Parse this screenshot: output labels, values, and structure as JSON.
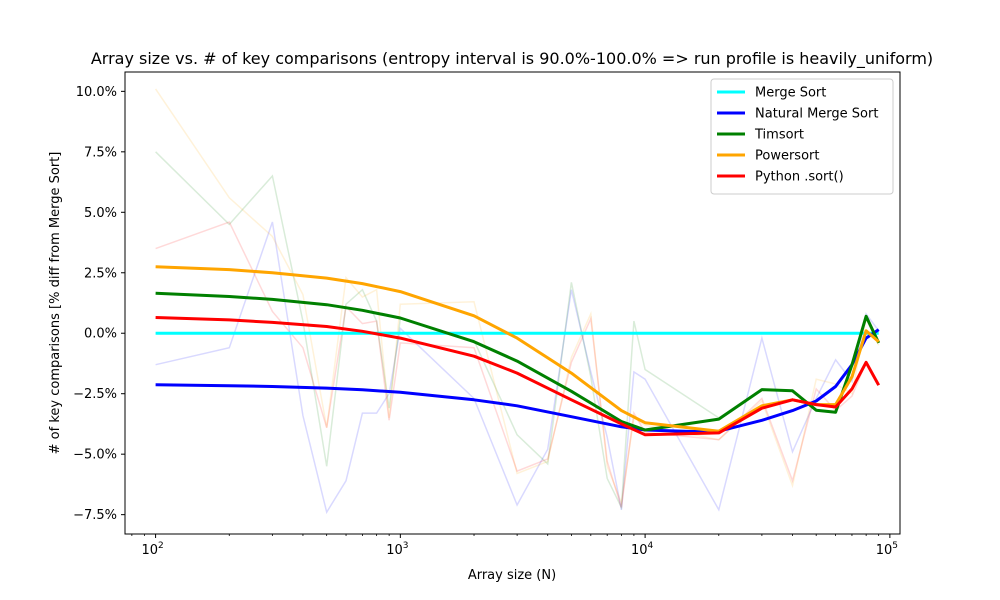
{
  "chart_data": {
    "type": "line",
    "title": "Array size vs. # of key comparisons (entropy interval is 90.0%-100.0% => run profile is heavily_uniform)",
    "xlabel": "Array size (N)",
    "ylabel": "# of key comparisons [% diff from Merge Sort]",
    "xscale": "log",
    "xlim": [
      75,
      110000
    ],
    "ylim": [
      -8.3,
      10.8
    ],
    "x_ticks": [
      {
        "value": 100,
        "base": "10",
        "exp": "2"
      },
      {
        "value": 1000,
        "base": "10",
        "exp": "3"
      },
      {
        "value": 10000,
        "base": "10",
        "exp": "4"
      },
      {
        "value": 100000,
        "base": "10",
        "exp": "5"
      }
    ],
    "y_ticks": [
      {
        "value": 10,
        "label": "10.0%"
      },
      {
        "value": 7.5,
        "label": "7.5%"
      },
      {
        "value": 5,
        "label": "5.0%"
      },
      {
        "value": 2.5,
        "label": "2.5%"
      },
      {
        "value": 0,
        "label": "0.0%"
      },
      {
        "value": -2.5,
        "label": "−2.5%"
      },
      {
        "value": -5,
        "label": "−5.0%"
      },
      {
        "value": -7.5,
        "label": "−7.5%"
      }
    ],
    "grid": false,
    "legend_position": "top-right",
    "series": [
      {
        "name": "Merge Sort",
        "color": "#00ffff",
        "raw_x": [
          100,
          90000
        ],
        "raw_y": [
          0,
          0
        ],
        "smooth_x": [
          100,
          200,
          500,
          1000,
          2000,
          5000,
          10000,
          20000,
          50000,
          90000
        ],
        "smooth_y": [
          0,
          0,
          0,
          0,
          0,
          0,
          0,
          0,
          0,
          0
        ]
      },
      {
        "name": "Natural Merge Sort",
        "color": "#0000ff",
        "raw_x": [
          100,
          200,
          300,
          400,
          500,
          600,
          700,
          800,
          900,
          1000,
          2000,
          3000,
          4000,
          5000,
          6000,
          7000,
          8000,
          9000,
          10000,
          20000,
          30000,
          40000,
          50000,
          60000,
          70000,
          80000,
          90000
        ],
        "raw_y": [
          -1.3,
          -0.6,
          4.6,
          -3.4,
          -7.4,
          -6.1,
          -3.3,
          -3.3,
          -2.5,
          0.2,
          -2.7,
          -7.1,
          -4.8,
          1.8,
          -1.6,
          -4.3,
          -7.3,
          -1.6,
          -1.9,
          -7.3,
          -0.2,
          -4.9,
          -2.7,
          -1.1,
          -2.0,
          0.8,
          0.1
        ],
        "smooth_x": [
          100,
          200,
          300,
          500,
          700,
          1000,
          2000,
          3000,
          5000,
          8000,
          10000,
          15000,
          20000,
          30000,
          40000,
          50000,
          60000,
          70000,
          80000,
          90000
        ],
        "smooth_y": [
          -2.13,
          -2.17,
          -2.2,
          -2.27,
          -2.34,
          -2.44,
          -2.75,
          -3.0,
          -3.45,
          -3.87,
          -4.0,
          -4.06,
          -4.05,
          -3.6,
          -3.2,
          -2.8,
          -2.2,
          -1.3,
          -0.2,
          0.15
        ]
      },
      {
        "name": "Timsort",
        "color": "#008000",
        "raw_x": [
          100,
          200,
          300,
          400,
          500,
          600,
          700,
          800,
          900,
          1000,
          2000,
          3000,
          4000,
          5000,
          6000,
          7000,
          8000,
          9000,
          10000,
          20000,
          30000,
          40000,
          50000,
          60000,
          70000,
          80000,
          90000
        ],
        "raw_y": [
          7.5,
          4.5,
          6.5,
          0.5,
          -5.5,
          1.2,
          1.8,
          0.5,
          -3.1,
          0.6,
          -0.3,
          -4.2,
          -5.4,
          2.1,
          -1.8,
          -6.0,
          -7.2,
          0.5,
          -1.5,
          -3.5,
          -2.3,
          -2.4,
          -3.2,
          -3.3,
          -1.3,
          0.7,
          -0.4
        ],
        "smooth_x": [
          100,
          200,
          300,
          500,
          700,
          1000,
          2000,
          3000,
          5000,
          8000,
          10000,
          20000,
          30000,
          40000,
          50000,
          60000,
          70000,
          80000,
          90000
        ],
        "smooth_y": [
          1.65,
          1.52,
          1.4,
          1.18,
          0.95,
          0.63,
          -0.35,
          -1.15,
          -2.4,
          -3.65,
          -4.0,
          -3.55,
          -2.33,
          -2.38,
          -3.18,
          -3.27,
          -1.3,
          0.7,
          -0.4
        ]
      },
      {
        "name": "Powersort",
        "color": "#ffa500",
        "raw_x": [
          100,
          200,
          300,
          400,
          500,
          600,
          700,
          800,
          900,
          1000,
          2000,
          3000,
          4000,
          5000,
          6000,
          7000,
          8000,
          9000,
          10000,
          20000,
          30000,
          40000,
          50000,
          60000,
          70000,
          80000,
          90000
        ],
        "raw_y": [
          10.1,
          5.6,
          4.0,
          1.6,
          -3.9,
          2.3,
          1.5,
          1.8,
          -3.5,
          1.2,
          1.3,
          -5.8,
          -5.3,
          -1.0,
          0.8,
          -5.5,
          -7.0,
          -3.5,
          -3.8,
          -4.4,
          -2.8,
          -6.3,
          -1.9,
          -2.1,
          -2.5,
          0.6,
          -0.5
        ],
        "smooth_x": [
          100,
          200,
          300,
          500,
          700,
          1000,
          2000,
          3000,
          5000,
          8000,
          10000,
          20000,
          30000,
          40000,
          50000,
          60000,
          70000,
          80000,
          90000
        ],
        "smooth_y": [
          2.75,
          2.63,
          2.5,
          2.28,
          2.05,
          1.72,
          0.72,
          -0.2,
          -1.65,
          -3.2,
          -3.7,
          -4.05,
          -3.0,
          -2.75,
          -2.95,
          -2.95,
          -1.8,
          0.1,
          -0.35
        ]
      },
      {
        "name": "Python .sort()",
        "color": "#ff0000",
        "raw_x": [
          100,
          200,
          300,
          400,
          500,
          600,
          700,
          800,
          900,
          1000,
          2000,
          3000,
          4000,
          5000,
          6000,
          7000,
          8000,
          9000,
          10000,
          20000,
          30000,
          40000,
          50000,
          60000,
          70000,
          80000,
          90000
        ],
        "raw_y": [
          3.5,
          4.6,
          0.9,
          -0.6,
          -3.9,
          1.1,
          0.4,
          0.5,
          -3.6,
          -0.4,
          -0.6,
          -5.7,
          -5.2,
          -1.2,
          0.6,
          -5.3,
          -7.2,
          -3.3,
          -4.1,
          -4.4,
          -2.7,
          -6.1,
          -2.3,
          -3.2,
          -2.6,
          -1.2,
          -2.1
        ],
        "smooth_x": [
          100,
          200,
          300,
          500,
          700,
          1000,
          2000,
          3000,
          5000,
          8000,
          10000,
          20000,
          30000,
          40000,
          50000,
          60000,
          70000,
          80000,
          90000
        ],
        "smooth_y": [
          0.65,
          0.55,
          0.45,
          0.28,
          0.08,
          -0.2,
          -0.95,
          -1.65,
          -2.75,
          -3.75,
          -4.2,
          -4.12,
          -3.1,
          -2.75,
          -2.95,
          -3.05,
          -2.3,
          -1.2,
          -2.15
        ]
      }
    ]
  }
}
